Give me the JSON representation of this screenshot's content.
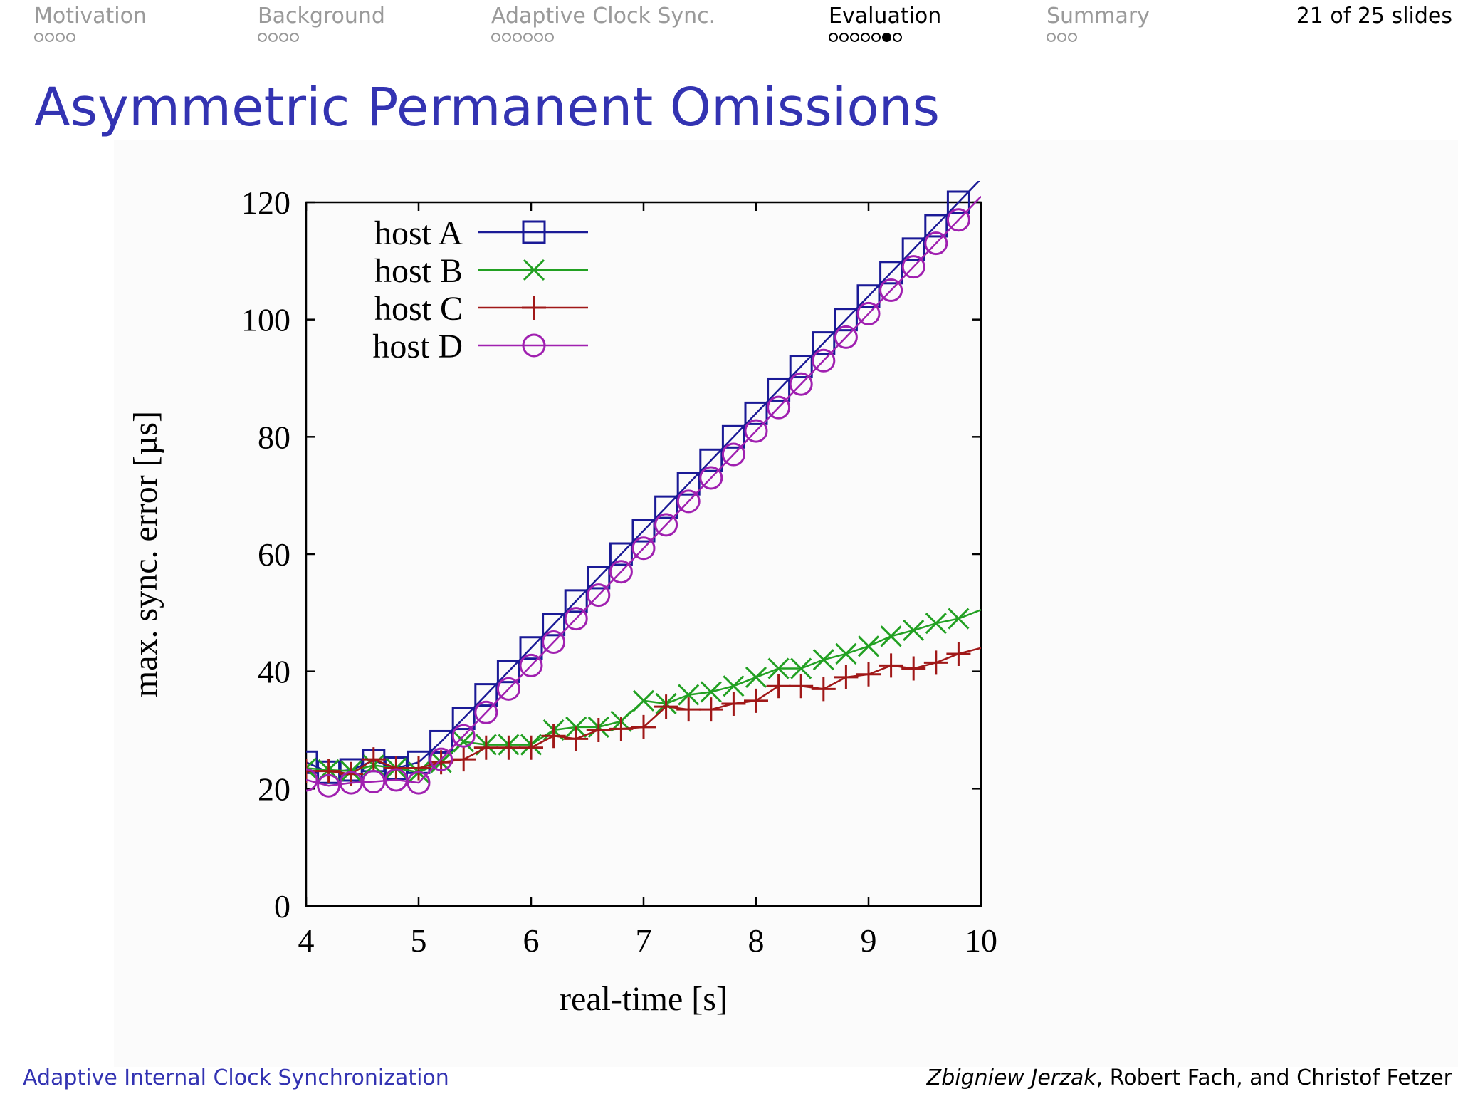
{
  "nav": {
    "sections": [
      {
        "label": "Motivation",
        "dots": 4,
        "filled": -1
      },
      {
        "label": "Background",
        "dots": 4,
        "filled": -1
      },
      {
        "label": "Adaptive Clock Sync.",
        "dots": 6,
        "filled": -1
      },
      {
        "label": "Evaluation",
        "dots": 7,
        "filled": 5
      },
      {
        "label": "Summary",
        "dots": 3,
        "filled": -1
      }
    ],
    "slide_counter": "21 of 25 slides"
  },
  "title": "Asymmetric Permanent Omissions",
  "footer": {
    "left": "Adaptive Internal Clock Synchronization",
    "author_primary": "Zbigniew Jerzak",
    "author_rest": ", Robert Fach, and Christof Fetzer"
  },
  "chart_data": {
    "type": "line",
    "xlabel": "real-time [s]",
    "ylabel": "max. sync. error [µs]",
    "xlim": [
      4,
      10
    ],
    "ylim": [
      0,
      120
    ],
    "xticks": [
      "4",
      "5",
      "6",
      "7",
      "8",
      "9",
      "10"
    ],
    "yticks": [
      "0",
      "20",
      "40",
      "60",
      "80",
      "100",
      "120"
    ],
    "grid": false,
    "legend_position": "top-left",
    "series": [
      {
        "name": "host A",
        "color": "#1a1a96",
        "marker": "square",
        "x": [
          4.0,
          4.2,
          4.4,
          4.6,
          4.8,
          5.0,
          5.2,
          5.4,
          5.6,
          5.8,
          6.0,
          6.2,
          6.4,
          6.6,
          6.8,
          7.0,
          7.2,
          7.4,
          7.6,
          7.8,
          8.0,
          8.2,
          8.4,
          8.6,
          8.8,
          9.0,
          9.2,
          9.4,
          9.6,
          9.8,
          10.0
        ],
        "y": [
          24.5,
          22.8,
          23.2,
          24.8,
          23.5,
          24.5,
          28,
          32,
          36,
          40,
          44,
          48,
          52,
          56,
          60,
          64,
          68,
          72,
          76,
          80,
          84,
          88,
          92,
          96,
          100,
          104,
          108,
          112,
          116,
          120,
          124
        ]
      },
      {
        "name": "host B",
        "color": "#22a022",
        "marker": "x",
        "x": [
          4.0,
          4.2,
          4.4,
          4.6,
          4.8,
          5.0,
          5.2,
          5.4,
          5.6,
          5.8,
          6.0,
          6.2,
          6.4,
          6.6,
          6.8,
          7.0,
          7.2,
          7.4,
          7.6,
          7.8,
          8.0,
          8.2,
          8.4,
          8.6,
          8.8,
          9.0,
          9.2,
          9.4,
          9.6,
          9.8,
          10.0
        ],
        "y": [
          23.5,
          23.2,
          23,
          24,
          23.5,
          22.8,
          24.5,
          28,
          27.5,
          27.5,
          27.5,
          30,
          30.5,
          30.5,
          31.5,
          35,
          34.5,
          36,
          36.5,
          37.5,
          39,
          40.5,
          40.5,
          42,
          43,
          44.3,
          46,
          47,
          48.2,
          49,
          50.5
        ]
      },
      {
        "name": "host C",
        "color": "#a01818",
        "marker": "plus",
        "x": [
          4.0,
          4.2,
          4.4,
          4.6,
          4.8,
          5.0,
          5.2,
          5.4,
          5.6,
          5.8,
          6.0,
          6.2,
          6.4,
          6.6,
          6.8,
          7.0,
          7.2,
          7.4,
          7.6,
          7.8,
          8.0,
          8.2,
          8.4,
          8.6,
          8.8,
          9.0,
          9.2,
          9.4,
          9.6,
          9.8,
          10.0
        ],
        "y": [
          23,
          23,
          22.5,
          25,
          23.5,
          23.5,
          24.5,
          25,
          27,
          27,
          27,
          29,
          28.5,
          30,
          30.2,
          30.5,
          34,
          33.5,
          33.5,
          34.5,
          35,
          37.5,
          37.5,
          37,
          39,
          39.5,
          41,
          40.5,
          41.5,
          43,
          44
        ]
      },
      {
        "name": "host D",
        "color": "#a020b0",
        "marker": "circle",
        "x": [
          4.0,
          4.2,
          4.4,
          4.6,
          4.8,
          5.0,
          5.2,
          5.4,
          5.6,
          5.8,
          6.0,
          6.2,
          6.4,
          6.6,
          6.8,
          7.0,
          7.2,
          7.4,
          7.6,
          7.8,
          8.0,
          8.2,
          8.4,
          8.6,
          8.8,
          9.0,
          9.2,
          9.4,
          9.6,
          9.8,
          10.0
        ],
        "y": [
          21.5,
          20.5,
          21,
          21.2,
          21.5,
          21,
          25,
          29,
          33,
          37,
          41,
          45,
          49,
          53,
          57,
          61,
          65,
          69,
          73,
          77,
          81,
          85,
          89,
          93,
          97,
          101,
          105,
          109,
          113,
          117,
          121
        ]
      }
    ]
  }
}
